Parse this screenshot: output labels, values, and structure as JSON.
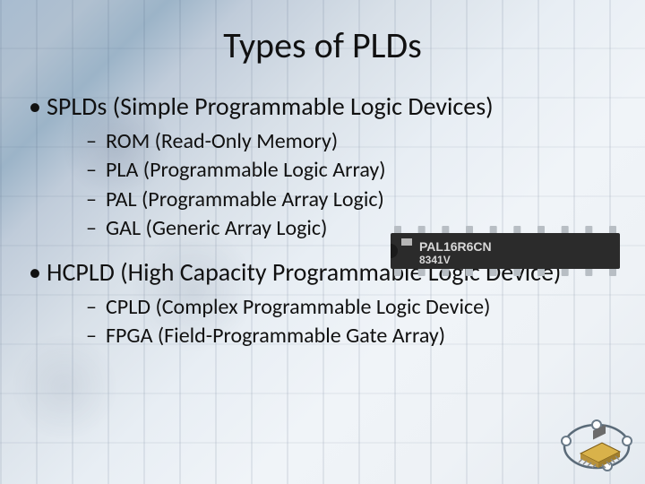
{
  "title": "Types of PLDs",
  "title_fontsize": 40,
  "body_fontsize": 28,
  "sub_fontsize": 24,
  "text_color": "#111111",
  "background_gradient": [
    "#a8bcd0",
    "#b0c0d0",
    "#9cb4c8",
    "#c0ccda",
    "#d8e0e8",
    "#e8eef4",
    "#f0f4f8",
    "#eef2f6",
    "#e4eaf0"
  ],
  "bullets": [
    {
      "text": "SPLDs (Simple Programmable Logic Devices)",
      "sub": [
        "ROM (Read-Only Memory)",
        "PLA (Programmable Logic Array)",
        "PAL (Programmable Array Logic)",
        "GAL (Generic Array Logic)"
      ]
    },
    {
      "text": "HCPLD (High Capacity Programmable Logic Device)",
      "sub": [
        "CPLD (Complex Programmable Logic Device)",
        "FPGA (Field-Programmable Gate Array)"
      ]
    }
  ],
  "chip": {
    "label_line1": "PAL16R6CN",
    "label_line2": "8341V",
    "body_color": "#2b2b2b",
    "label_color": "#d8d8d8",
    "pin_color": "#b8bec4",
    "notch_color": "#1a1a1a",
    "pin_count_per_side": 10
  },
  "corner_logo": {
    "chip_body": "#d9b24a",
    "chip_border": "#7a5a16",
    "arc_color": "#5a6a78",
    "node_colors": [
      "#6a7a88",
      "#6a7a88",
      "#6a7a88",
      "#6a7a88"
    ]
  }
}
